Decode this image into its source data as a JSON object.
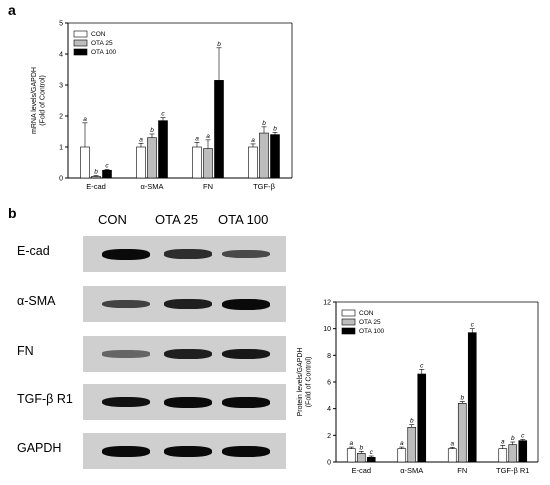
{
  "panel_a": {
    "letter": "a"
  },
  "panel_b": {
    "letter": "b",
    "lane_labels": [
      "CON",
      "OTA 25",
      "OTA 100"
    ],
    "blots": [
      {
        "label": "E-cad",
        "intensity": [
          1.0,
          0.75,
          0.55
        ]
      },
      {
        "label": "α-SMA",
        "intensity": [
          0.6,
          0.85,
          1.0
        ]
      },
      {
        "label": "FN",
        "intensity": [
          0.35,
          0.85,
          0.9
        ]
      },
      {
        "label": "TGF-β R1",
        "intensity": [
          0.95,
          1.0,
          1.0
        ]
      },
      {
        "label": "GAPDH",
        "intensity": [
          1.0,
          1.0,
          1.0
        ]
      }
    ]
  },
  "colors": {
    "con": "#ffffff",
    "ota25": "#bdbdbd",
    "ota100": "#000000"
  },
  "chart_data": [
    {
      "type": "bar",
      "ylabel_lines": [
        "mRNA levels/GAPDH",
        "(Fold of Control)"
      ],
      "ylim": [
        0,
        5
      ],
      "yticks": [
        0,
        1,
        2,
        3,
        4,
        5
      ],
      "categories": [
        "E-cad",
        "α-SMA",
        "FN",
        "TGF-β"
      ],
      "legend_position": "top-left",
      "series": [
        {
          "name": "CON",
          "values": [
            1.0,
            1.0,
            1.0,
            1.0
          ],
          "errors": [
            0.78,
            0.12,
            0.15,
            0.1
          ],
          "letters": [
            "a",
            "a",
            "a",
            "a"
          ]
        },
        {
          "name": "OTA 25",
          "values": [
            0.05,
            1.3,
            0.95,
            1.45
          ],
          "errors": [
            0.03,
            0.12,
            0.28,
            0.2
          ],
          "letters": [
            "b",
            "b",
            "a",
            "b"
          ]
        },
        {
          "name": "OTA 100",
          "values": [
            0.25,
            1.85,
            3.15,
            1.4
          ],
          "errors": [
            0.03,
            0.1,
            1.05,
            0.07
          ],
          "letters": [
            "c",
            "c",
            "b",
            "b"
          ]
        }
      ]
    },
    {
      "type": "bar",
      "ylabel_lines": [
        "Protein levels/GAPDH",
        "(Fold of Control)"
      ],
      "ylim": [
        0,
        12
      ],
      "yticks": [
        0,
        2,
        4,
        6,
        8,
        10,
        12
      ],
      "categories": [
        "E-cad",
        "α-SMA",
        "FN",
        "TGF-β R1"
      ],
      "legend_position": "top-left",
      "series": [
        {
          "name": "CON",
          "values": [
            1.0,
            1.0,
            1.0,
            1.0
          ],
          "errors": [
            0.12,
            0.12,
            0.1,
            0.25
          ],
          "letters": [
            "a",
            "a",
            "a",
            "a"
          ]
        },
        {
          "name": "OTA 25",
          "values": [
            0.65,
            2.6,
            4.4,
            1.3
          ],
          "errors": [
            0.15,
            0.2,
            0.15,
            0.2
          ],
          "letters": [
            "b",
            "b",
            "b",
            "b"
          ]
        },
        {
          "name": "OTA 100",
          "values": [
            0.35,
            6.6,
            9.7,
            1.6
          ],
          "errors": [
            0.1,
            0.35,
            0.3,
            0.1
          ],
          "letters": [
            "c",
            "c",
            "c",
            "c"
          ]
        }
      ]
    }
  ]
}
